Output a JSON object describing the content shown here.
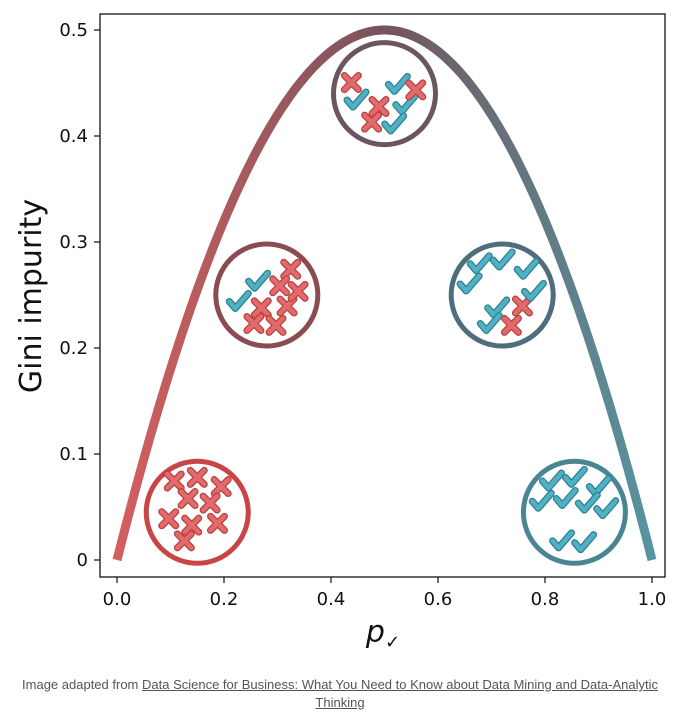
{
  "chart_data": {
    "type": "line",
    "xlabel": "p",
    "xlabel_sub": "✓",
    "ylabel": "Gini impurity",
    "xlim": [
      0,
      1
    ],
    "ylim": [
      0,
      0.5
    ],
    "xticks": [
      "0.0",
      "0.2",
      "0.4",
      "0.6",
      "0.8",
      "1.0"
    ],
    "yticks": [
      "0",
      "0.1",
      "0.2",
      "0.3",
      "0.4",
      "0.5"
    ],
    "grid": false,
    "curve": {
      "formula": "2p(1-p)",
      "color_start": "#d45f5f",
      "color_mid": "#75545d",
      "color_end": "#56949f"
    },
    "circles": [
      {
        "p": 0.0,
        "x": 0.15,
        "y": 0.045,
        "ring_color": "#c94545",
        "checks": 0,
        "crosses": 9
      },
      {
        "p": 0.25,
        "x": 0.28,
        "y": 0.25,
        "ring_color": "#8a4b52",
        "checks": 2,
        "crosses": 7
      },
      {
        "p": 0.5,
        "x": 0.5,
        "y": 0.44,
        "ring_color": "#6b5560",
        "checks": 4,
        "crosses": 4
      },
      {
        "p": 0.75,
        "x": 0.72,
        "y": 0.25,
        "ring_color": "#4f6e7b",
        "checks": 7,
        "crosses": 2
      },
      {
        "p": 1.0,
        "x": 0.855,
        "y": 0.045,
        "ring_color": "#4a8593",
        "checks": 9,
        "crosses": 0
      }
    ],
    "marker_colors": {
      "cross": "#e26a6a",
      "check": "#4fb1c4"
    }
  },
  "caption": {
    "prefix": "Image adapted from ",
    "link": "Data Science for Business: What You Need to Know about Data Mining and Data-Analytic Thinking"
  }
}
